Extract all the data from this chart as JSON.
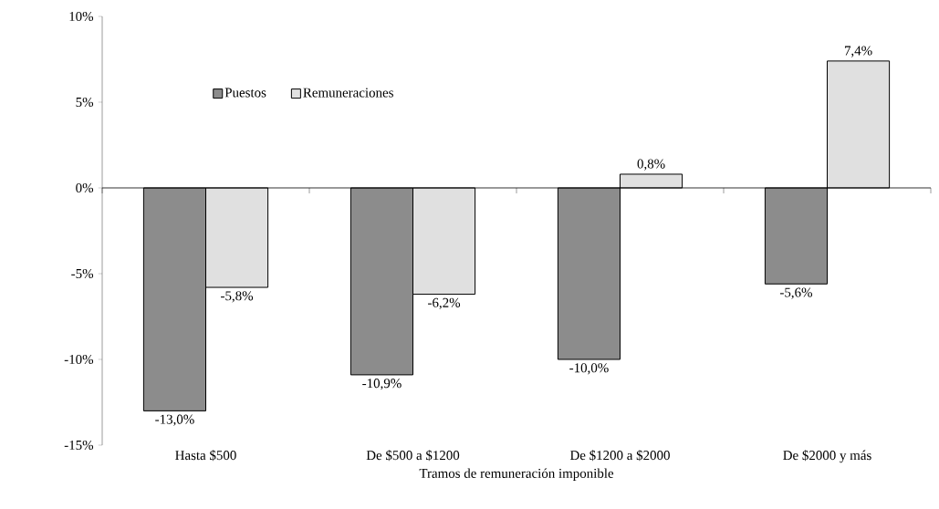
{
  "chart_data": {
    "type": "bar",
    "xlabel": "Tramos de remuneración imponible",
    "categories": [
      "Hasta $500",
      "De $500 a $1200",
      "De $1200 a $2000",
      "De $2000 y más"
    ],
    "series": [
      {
        "name": "Puestos",
        "color": "#8c8c8c",
        "values": [
          -13.0,
          -10.9,
          -10.0,
          -5.6
        ],
        "value_labels": [
          "-13,0%",
          "-10,9%",
          "-10,0%",
          "-5,6%"
        ]
      },
      {
        "name": "Remuneraciones",
        "color": "#e0e0e0",
        "values": [
          -5.8,
          -6.2,
          0.8,
          7.4
        ],
        "value_labels": [
          "-5,8%",
          "-6,2%",
          "0,8%",
          "7,4%"
        ]
      }
    ],
    "ylim": [
      -15,
      10
    ],
    "yticks": [
      {
        "value": -15,
        "label": "-15%"
      },
      {
        "value": -10,
        "label": "-10%"
      },
      {
        "value": -5,
        "label": "-5%"
      },
      {
        "value": 0,
        "label": "0%"
      },
      {
        "value": 5,
        "label": "5%"
      },
      {
        "value": 10,
        "label": "10%"
      }
    ],
    "ref_lines": [
      {
        "axis": "y",
        "value": 0,
        "color": "#000000"
      }
    ],
    "legend": "top left",
    "grid": false
  }
}
